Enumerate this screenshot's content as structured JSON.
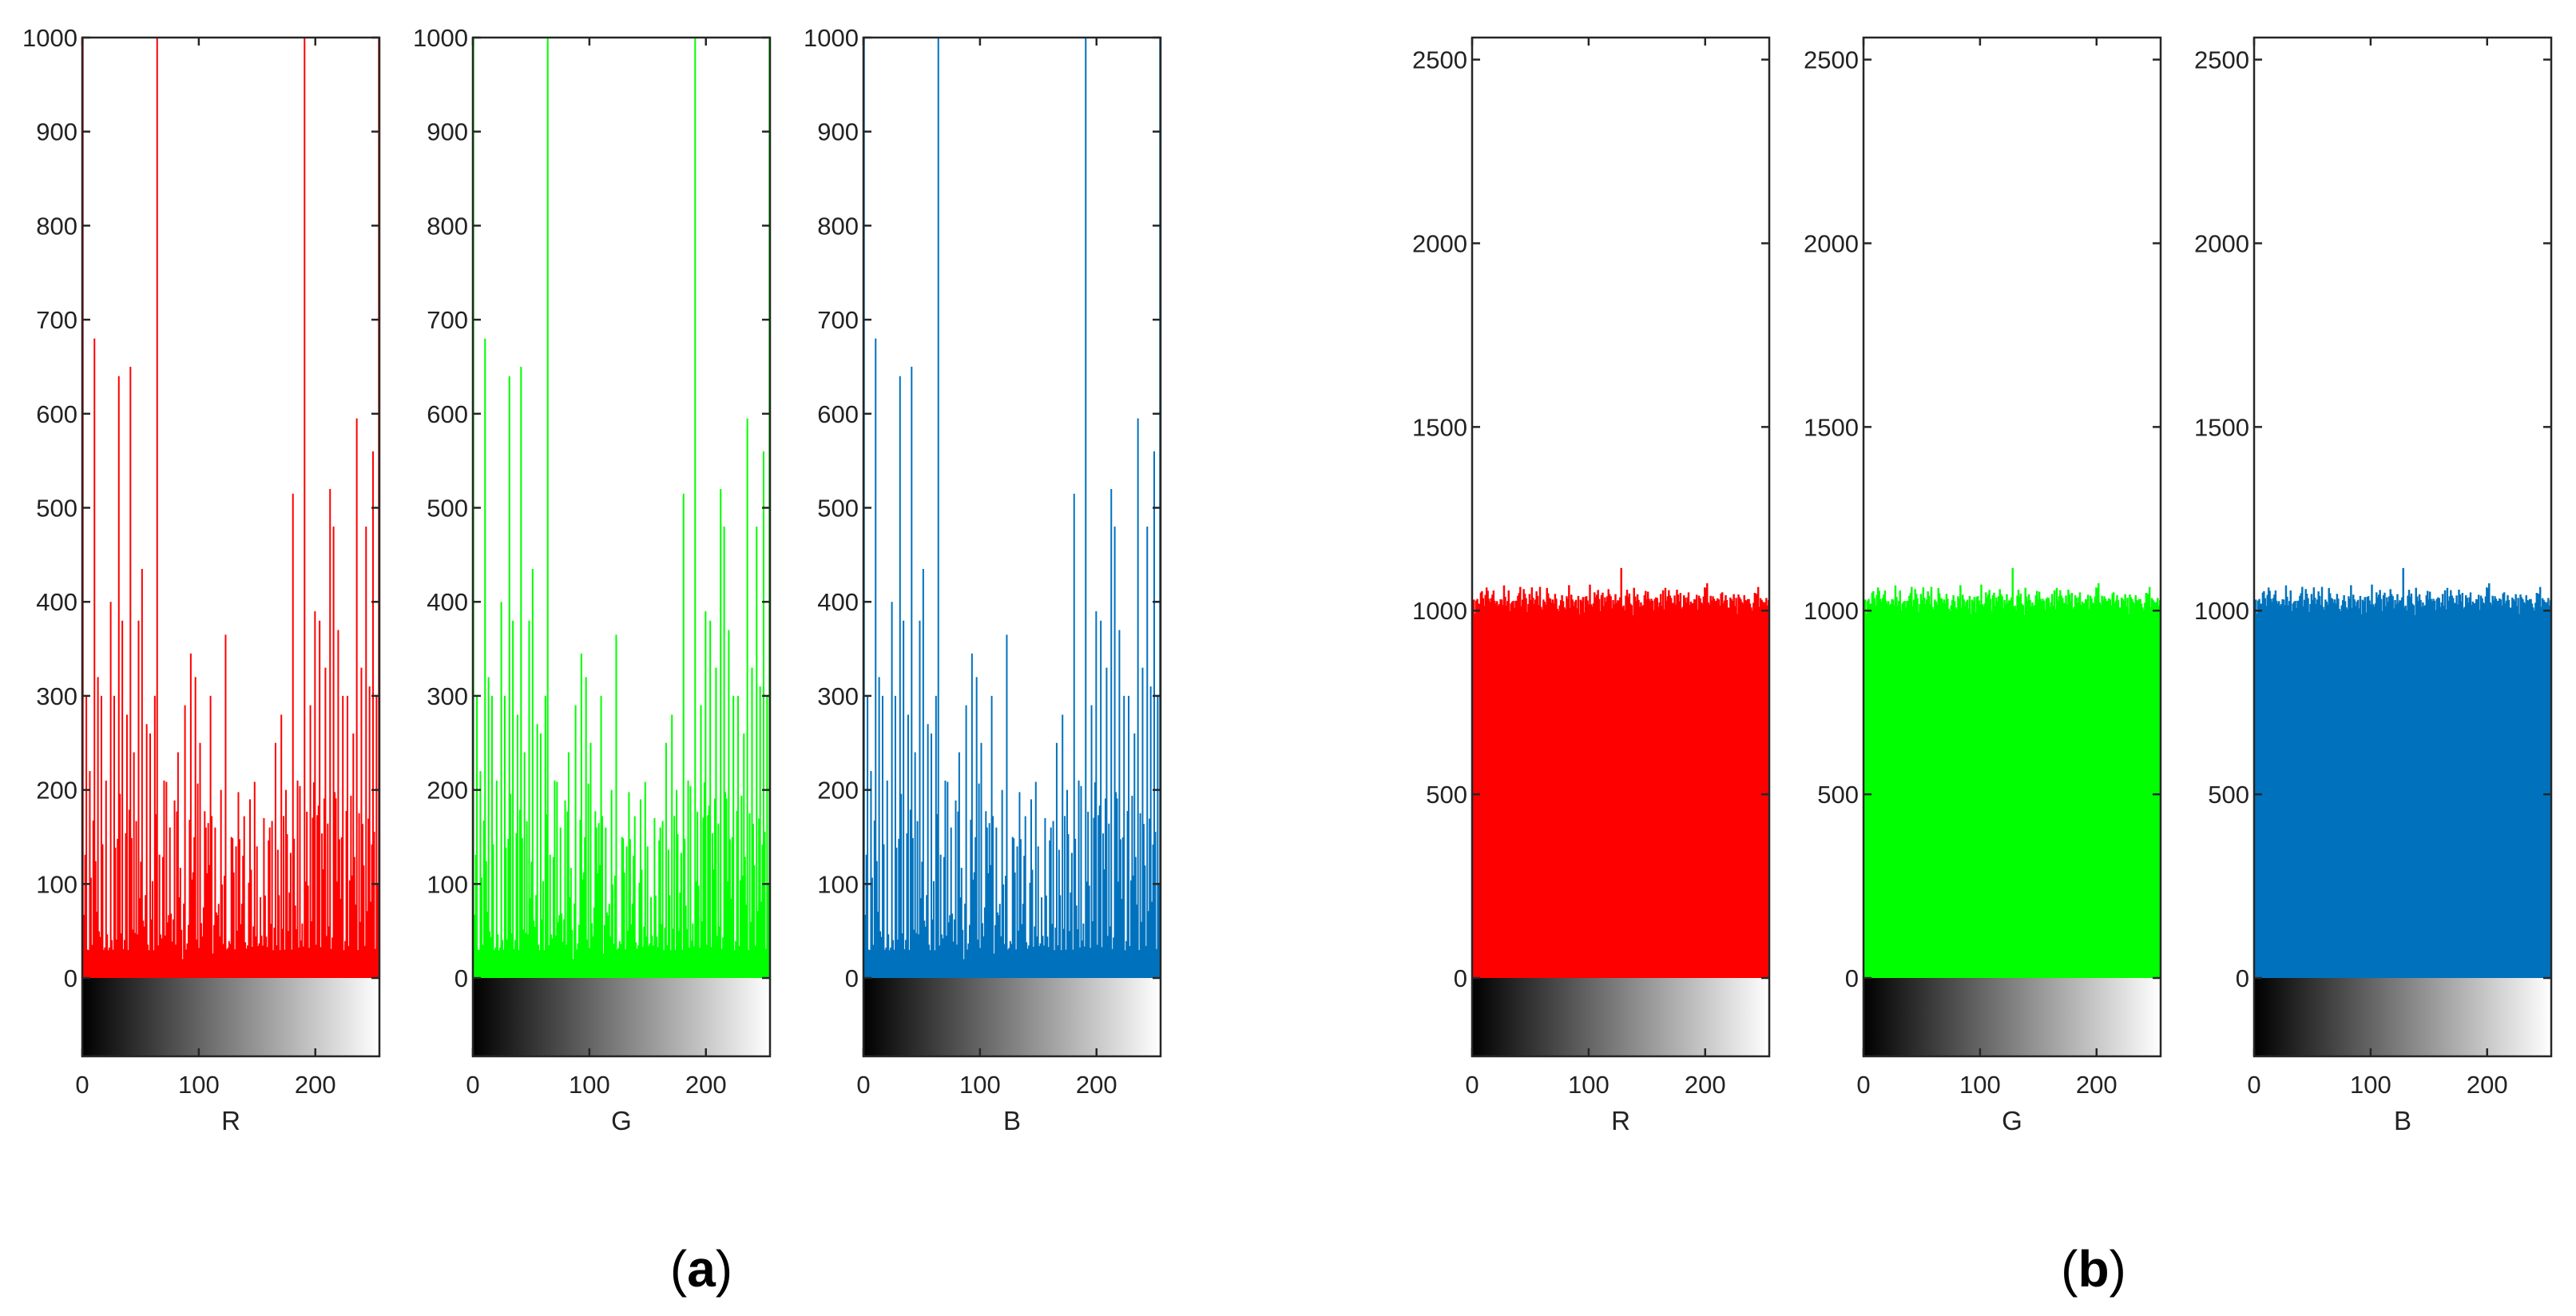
{
  "chart_data": [
    {
      "type": "bar",
      "panel": "(a)",
      "bins": 256,
      "xlim": [
        0,
        255
      ],
      "ylim": [
        0,
        1000
      ],
      "colorbar_ylim": [
        -80,
        0
      ],
      "xticks": [
        0,
        100,
        200
      ],
      "yticks": [
        0,
        100,
        200,
        300,
        400,
        500,
        600,
        700,
        800,
        900,
        1000
      ],
      "grid": false,
      "colorbar": "grayscale black-to-white along x",
      "subplots": [
        {
          "xlabel": "R",
          "color": "#ff0000"
        },
        {
          "xlabel": "G",
          "color": "#00ff00"
        },
        {
          "xlabel": "B",
          "color": "#0072bd"
        }
      ],
      "peaks": [
        {
          "x": 0,
          "y": 1000
        },
        {
          "x": 3,
          "y": 300
        },
        {
          "x": 6,
          "y": 220
        },
        {
          "x": 10,
          "y": 680
        },
        {
          "x": 13,
          "y": 320
        },
        {
          "x": 16,
          "y": 300
        },
        {
          "x": 20,
          "y": 210
        },
        {
          "x": 24,
          "y": 400
        },
        {
          "x": 27,
          "y": 300
        },
        {
          "x": 31,
          "y": 640
        },
        {
          "x": 34,
          "y": 380
        },
        {
          "x": 38,
          "y": 280
        },
        {
          "x": 41,
          "y": 650
        },
        {
          "x": 44,
          "y": 240
        },
        {
          "x": 48,
          "y": 380
        },
        {
          "x": 51,
          "y": 435
        },
        {
          "x": 55,
          "y": 270
        },
        {
          "x": 58,
          "y": 260
        },
        {
          "x": 62,
          "y": 300
        },
        {
          "x": 64,
          "y": 1000
        },
        {
          "x": 70,
          "y": 210
        },
        {
          "x": 75,
          "y": 160
        },
        {
          "x": 82,
          "y": 240
        },
        {
          "x": 88,
          "y": 290
        },
        {
          "x": 93,
          "y": 345
        },
        {
          "x": 97,
          "y": 320
        },
        {
          "x": 101,
          "y": 250
        },
        {
          "x": 106,
          "y": 160
        },
        {
          "x": 110,
          "y": 300
        },
        {
          "x": 114,
          "y": 160
        },
        {
          "x": 119,
          "y": 200
        },
        {
          "x": 123,
          "y": 365
        },
        {
          "x": 128,
          "y": 150
        },
        {
          "x": 132,
          "y": 140
        },
        {
          "x": 138,
          "y": 130
        },
        {
          "x": 144,
          "y": 190
        },
        {
          "x": 150,
          "y": 140
        },
        {
          "x": 156,
          "y": 170
        },
        {
          "x": 161,
          "y": 160
        },
        {
          "x": 166,
          "y": 250
        },
        {
          "x": 171,
          "y": 280
        },
        {
          "x": 175,
          "y": 200
        },
        {
          "x": 181,
          "y": 515
        },
        {
          "x": 185,
          "y": 210
        },
        {
          "x": 191,
          "y": 1000
        },
        {
          "x": 196,
          "y": 290
        },
        {
          "x": 200,
          "y": 390
        },
        {
          "x": 204,
          "y": 380
        },
        {
          "x": 209,
          "y": 330
        },
        {
          "x": 213,
          "y": 520
        },
        {
          "x": 216,
          "y": 480
        },
        {
          "x": 220,
          "y": 370
        },
        {
          "x": 224,
          "y": 300
        },
        {
          "x": 228,
          "y": 300
        },
        {
          "x": 233,
          "y": 260
        },
        {
          "x": 236,
          "y": 595
        },
        {
          "x": 240,
          "y": 330
        },
        {
          "x": 244,
          "y": 480
        },
        {
          "x": 247,
          "y": 310
        },
        {
          "x": 250,
          "y": 560
        },
        {
          "x": 253,
          "y": 300
        },
        {
          "x": 255,
          "y": 1000
        }
      ],
      "base_level": 130
    },
    {
      "type": "bar",
      "panel": "(b)",
      "bins": 256,
      "xlim": [
        0,
        255
      ],
      "ylim": [
        0,
        2560
      ],
      "colorbar_ylim": [
        -200,
        0
      ],
      "xticks": [
        0,
        100,
        200
      ],
      "yticks": [
        0,
        500,
        1000,
        1500,
        2000,
        2500
      ],
      "grid": false,
      "colorbar": "grayscale black-to-white along x",
      "subplots": [
        {
          "xlabel": "R",
          "color": "#ff0000"
        },
        {
          "xlabel": "G",
          "color": "#00ff00"
        },
        {
          "xlabel": "B",
          "color": "#0072bd"
        }
      ],
      "mean_count": 1030,
      "spread": 45,
      "max_count": 1115
    }
  ],
  "panel_labels": {
    "a": "(a)",
    "b": "(b)"
  }
}
